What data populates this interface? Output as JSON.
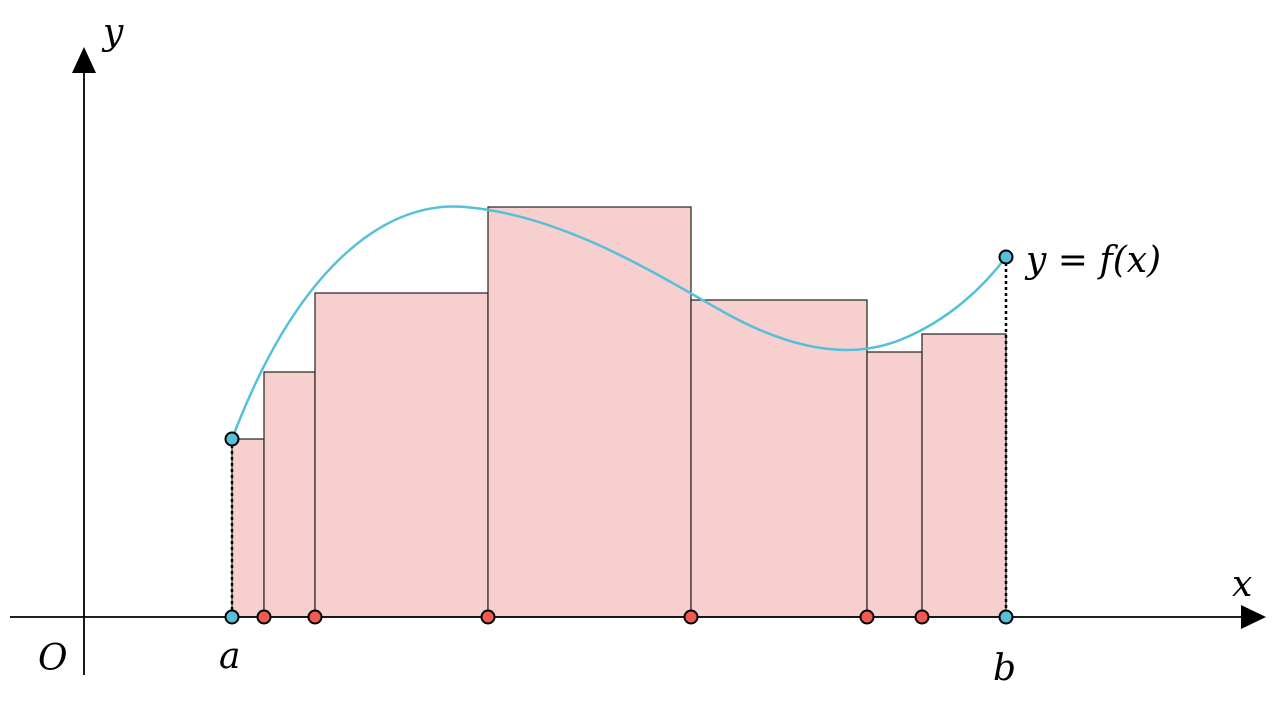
{
  "labels": {
    "y_axis": "y",
    "x_axis": "x",
    "origin": "O",
    "a": "a",
    "b": "b",
    "curve": "y = f(x)"
  },
  "colors": {
    "curve": "#56c0d9",
    "endpoint_fill": "#56c0d9",
    "partition_point_fill": "#f05a4f",
    "rect_fill": "#f7cfcf",
    "rect_stroke": "#222222",
    "axis": "#000000"
  },
  "icons": {
    "x_arrow": "arrowhead-right",
    "y_arrow": "arrowhead-up"
  }
}
